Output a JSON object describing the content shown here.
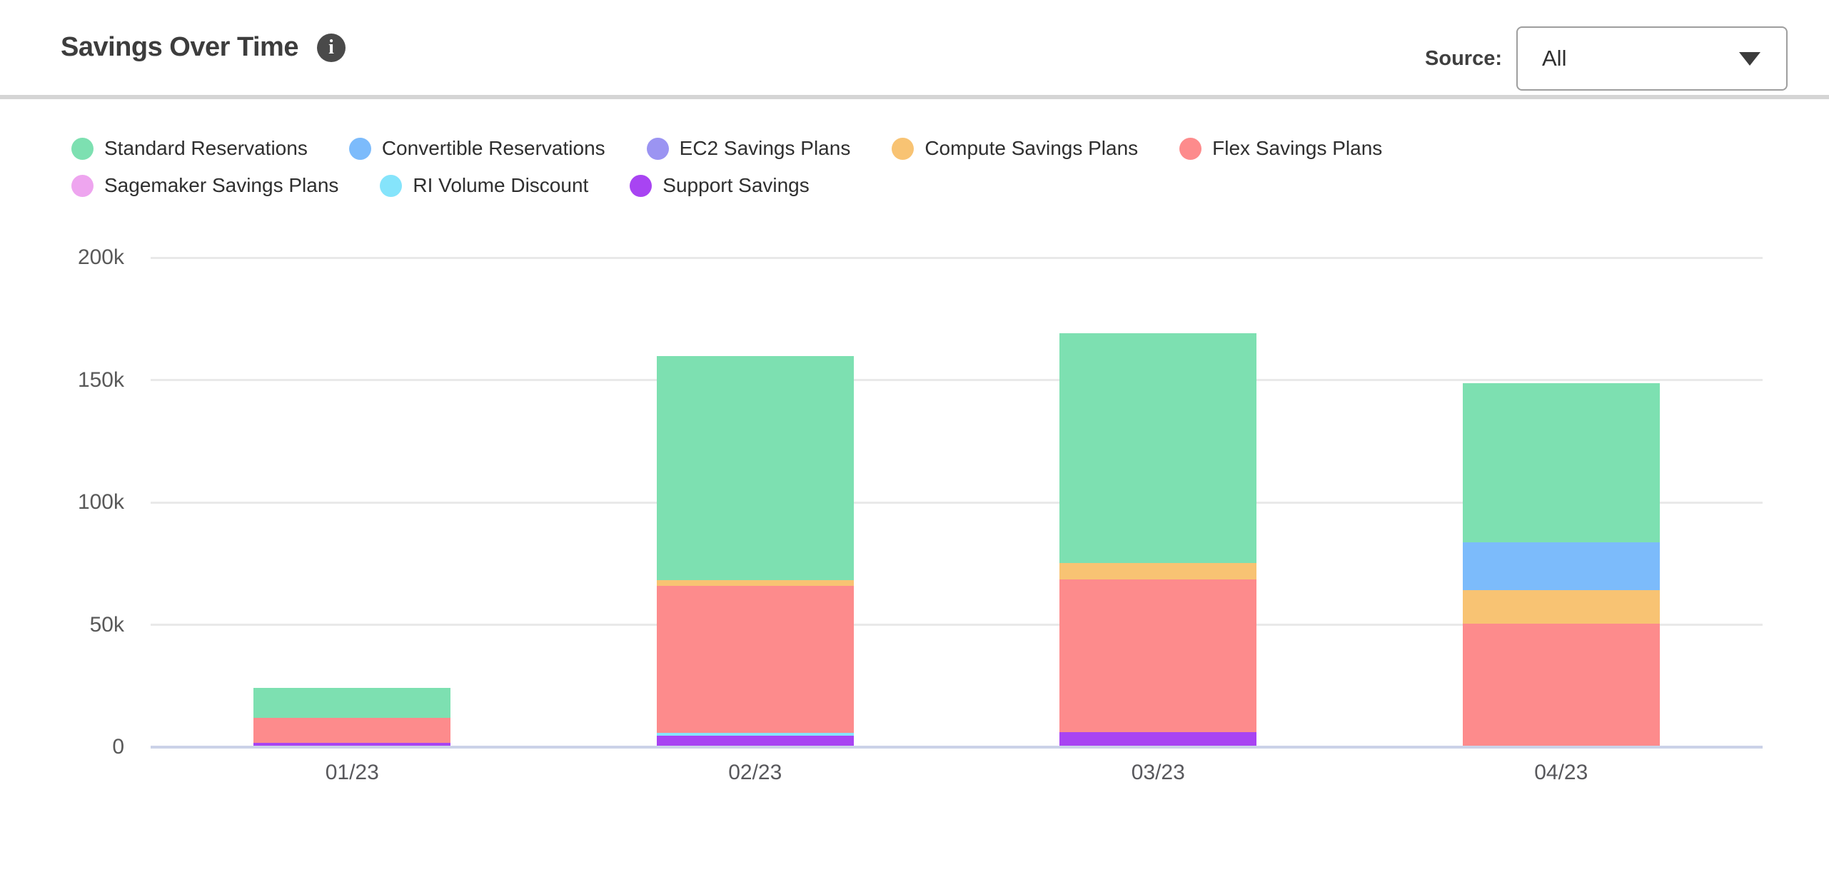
{
  "header": {
    "title": "Savings Over Time",
    "info_icon": "info-circle-icon",
    "source_label": "Source:",
    "source_value": "All"
  },
  "chart_data": {
    "type": "bar",
    "stacked": true,
    "title": "Savings Over Time",
    "categories": [
      "01/23",
      "02/23",
      "03/23",
      "04/23"
    ],
    "series": [
      {
        "name": "Standard Reservations",
        "color": "#7DE0B1",
        "values": [
          12300,
          91400,
          94100,
          65200
        ]
      },
      {
        "name": "Convertible Reservations",
        "color": "#7CBBFB",
        "values": [
          0,
          0,
          0,
          19400
        ]
      },
      {
        "name": "EC2 Savings Plans",
        "color": "#9B94F2",
        "values": [
          0,
          0,
          0,
          0
        ]
      },
      {
        "name": "Compute Savings Plans",
        "color": "#F8C373",
        "values": [
          0,
          2400,
          6600,
          13600
        ]
      },
      {
        "name": "Flex Savings Plans",
        "color": "#FD8B8C",
        "values": [
          10100,
          60200,
          62500,
          50000
        ]
      },
      {
        "name": "Sagemaker Savings Plans",
        "color": "#EEA5EF",
        "values": [
          0,
          0,
          0,
          0
        ]
      },
      {
        "name": "RI Volume Discount",
        "color": "#85E4FB",
        "values": [
          0,
          1100,
          0,
          0
        ]
      },
      {
        "name": "Support Savings",
        "color": "#A844F2",
        "values": [
          1200,
          4100,
          5500,
          0
        ]
      }
    ],
    "stack_order": "reverse-of-legend (Support Savings at bottom, Standard Reservations on top)",
    "xlabel": "",
    "ylabel": "",
    "ylim": [
      0,
      200000
    ],
    "y_ticks": [
      {
        "value": 0,
        "label": "0"
      },
      {
        "value": 50000,
        "label": "50k"
      },
      {
        "value": 100000,
        "label": "100k"
      },
      {
        "value": 150000,
        "label": "150k"
      },
      {
        "value": 200000,
        "label": "200k"
      }
    ],
    "grid": "horizontal",
    "legend_position": "top-left"
  },
  "colors": {
    "background": "#FFFFFF",
    "header_divider": "#D5D5D5",
    "title_text": "#3D3D3D",
    "info_icon_bg": "#4A4A4A",
    "axis_label_text": "#595959",
    "legend_text": "#2F2F2F",
    "gridline": "#E9E9E9",
    "baseline": "#CBD2E8",
    "dropdown_border": "#9E9E9E",
    "dropdown_text": "#2E2E2E"
  }
}
